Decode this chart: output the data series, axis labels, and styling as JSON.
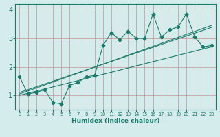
{
  "title": "",
  "xlabel": "Humidex (Indice chaleur)",
  "ylabel": "",
  "bg_color": "#d4ecec",
  "line_color": "#1a7a6a",
  "grid_color": "#c8a0a0",
  "xlim": [
    -0.5,
    23.5
  ],
  "ylim": [
    0.5,
    4.2
  ],
  "xticks": [
    0,
    1,
    2,
    3,
    4,
    5,
    6,
    7,
    8,
    9,
    10,
    11,
    12,
    13,
    14,
    15,
    16,
    17,
    18,
    19,
    20,
    21,
    22,
    23
  ],
  "yticks": [
    1,
    2,
    3,
    4
  ],
  "scatter_x": [
    0,
    1,
    2,
    3,
    4,
    5,
    6,
    7,
    8,
    9,
    10,
    11,
    12,
    13,
    14,
    15,
    16,
    17,
    18,
    19,
    20,
    21,
    22,
    23
  ],
  "scatter_y": [
    1.65,
    1.05,
    1.1,
    1.2,
    0.75,
    0.7,
    1.35,
    1.45,
    1.65,
    1.7,
    2.75,
    3.2,
    2.95,
    3.25,
    3.0,
    3.0,
    3.85,
    3.05,
    3.3,
    3.4,
    3.85,
    3.05,
    2.7,
    2.75
  ],
  "trend_x": [
    0,
    23
  ],
  "trend_y": [
    1.0,
    2.7
  ],
  "trend2_x": [
    0,
    23
  ],
  "trend2_y": [
    1.05,
    3.45
  ],
  "trend3_x": [
    0,
    23
  ],
  "trend3_y": [
    1.1,
    3.38
  ],
  "marker": "D",
  "marker_size": 2.5
}
